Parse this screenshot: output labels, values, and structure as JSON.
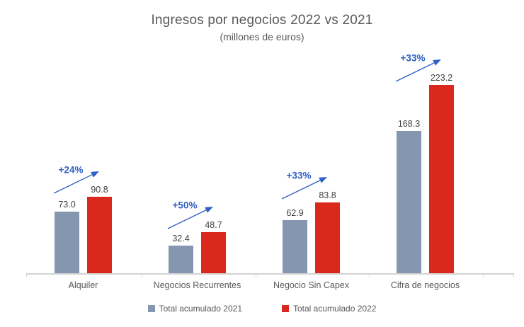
{
  "chart_data": {
    "type": "bar",
    "title": "Ingresos por negocios 2022 vs 2021",
    "subtitle": "(millones de euros)",
    "categories": [
      "Alquiler",
      "Negocios Recurrentes",
      "Negocio Sin Capex",
      "Cifra de negocios"
    ],
    "series": [
      {
        "name": "Total acumulado 2021",
        "color": "#8496B0",
        "values": [
          73.0,
          32.4,
          62.9,
          168.3
        ]
      },
      {
        "name": "Total acumulado 2022",
        "color": "#DA291C",
        "values": [
          90.8,
          48.7,
          83.8,
          223.2
        ]
      }
    ],
    "growth_annotations": [
      "+24%",
      "+50%",
      "+33%",
      "+33%"
    ],
    "annotation_color": "#2E5FC5",
    "value_label_decimals": 1,
    "ylim": [
      0,
      230
    ],
    "grid": false,
    "legend_position": "bottom",
    "axis_color": "#D3D3D3",
    "text_colors": {
      "title": "#595959",
      "subtitle": "#595959",
      "value_label": "#404040",
      "category_label": "#595959",
      "legend_label": "#595959"
    }
  }
}
